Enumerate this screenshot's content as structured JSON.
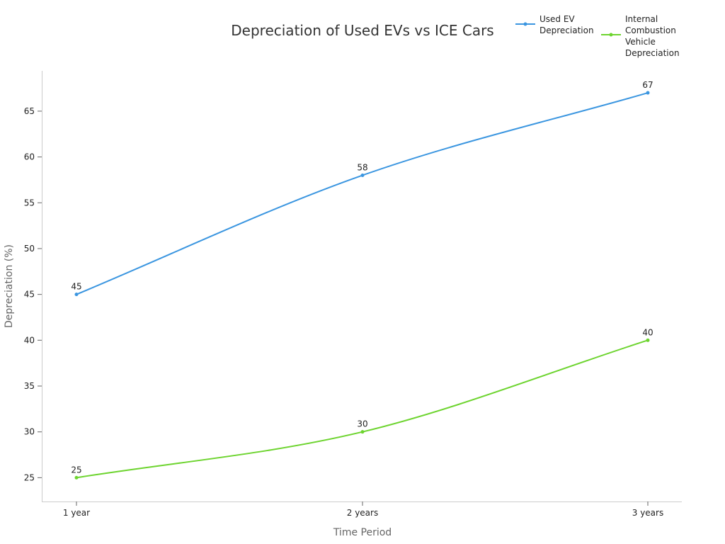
{
  "chart_data": {
    "type": "line",
    "title": "Depreciation of Used EVs vs ICE Cars",
    "xlabel": "Time Period",
    "ylabel": "Depreciation (%)",
    "categories": [
      "1 year",
      "2 years",
      "3 years"
    ],
    "yticks": [
      25,
      30,
      35,
      40,
      45,
      50,
      55,
      60,
      65
    ],
    "ylim": [
      22.4,
      69.4
    ],
    "grid": false,
    "legend_position": "top-right",
    "smooth": true,
    "series": [
      {
        "name": "Used EV Depreciation",
        "legend_lines": [
          "Used EV",
          "Depreciation"
        ],
        "color": "#3b96e0",
        "values": [
          45,
          58,
          67
        ]
      },
      {
        "name": "Internal Combustion Vehicle Depreciation",
        "legend_lines": [
          "Internal",
          "Combustion",
          "Vehicle",
          "Depreciation"
        ],
        "color": "#6dd42f",
        "values": [
          25,
          30,
          40
        ]
      }
    ]
  }
}
